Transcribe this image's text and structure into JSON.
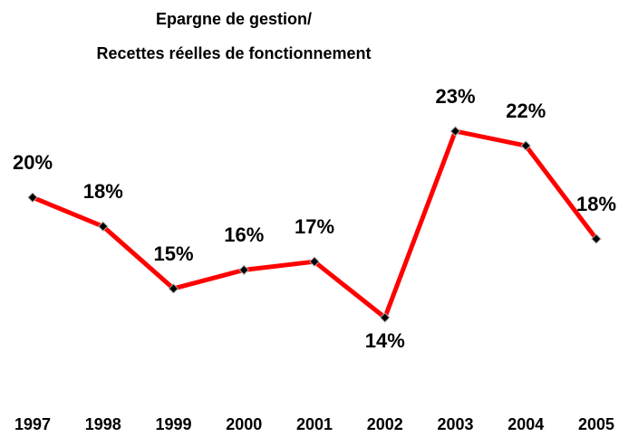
{
  "chart_data": {
    "type": "line",
    "title_lines": [
      "Epargne de gestion/",
      "Recettes réelles de fonctionnement"
    ],
    "categories": [
      "1997",
      "1998",
      "1999",
      "2000",
      "2001",
      "2002",
      "2003",
      "2004",
      "2005"
    ],
    "series": [
      {
        "color": "#ff0000",
        "values": [
          19.8,
          18.4,
          15.4,
          16.3,
          16.7,
          14,
          23,
          22.3,
          17.8
        ],
        "value_labels": [
          "20%",
          "18%",
          "15%",
          "16%",
          "17%",
          "14%",
          "23%",
          "22%",
          "18%"
        ]
      }
    ]
  }
}
